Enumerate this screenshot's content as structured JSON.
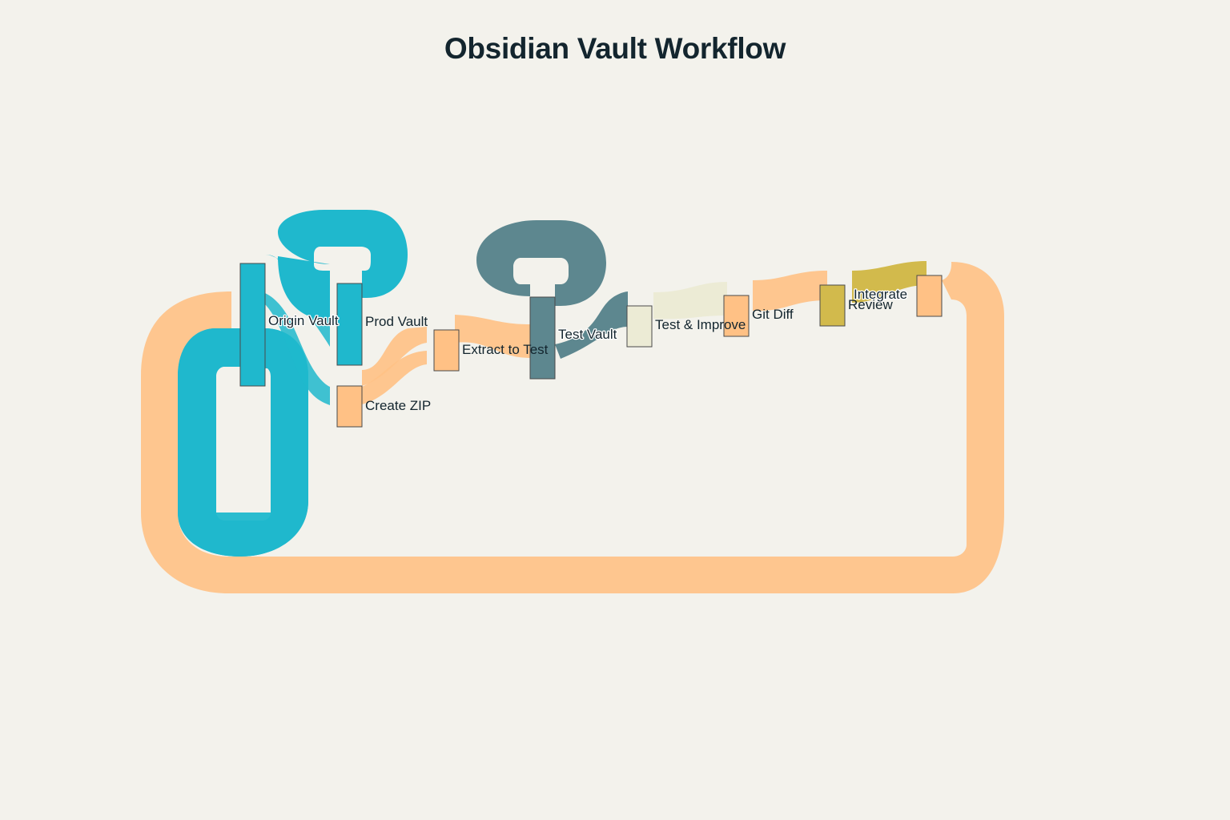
{
  "title": "Obsidian Vault Workflow",
  "colors": {
    "background": "#f3f2ec",
    "cyan": "#1fb8cd",
    "orange": "#ffc185",
    "slate": "#5d878f",
    "cream": "#ecebd5",
    "olive": "#d2ba4c"
  },
  "nodes": [
    {
      "id": "origin",
      "label": "Origin Vault",
      "color": "#1fb8cd"
    },
    {
      "id": "prod",
      "label": "Prod Vault",
      "color": "#1fb8cd"
    },
    {
      "id": "zip",
      "label": "Create ZIP",
      "color": "#ffc185"
    },
    {
      "id": "extract",
      "label": "Extract to Test",
      "color": "#ffc185"
    },
    {
      "id": "test",
      "label": "Test Vault",
      "color": "#5d878f"
    },
    {
      "id": "improve",
      "label": "Test & Improve",
      "color": "#ecebd5"
    },
    {
      "id": "diff",
      "label": "Git Diff",
      "color": "#ffc185"
    },
    {
      "id": "review",
      "label": "Review",
      "color": "#d2ba4c"
    },
    {
      "id": "integrate",
      "label": "Integrate",
      "color": "#ffc185"
    }
  ],
  "links": [
    {
      "source": "origin",
      "target": "origin",
      "color": "#1fb8cd"
    },
    {
      "source": "origin",
      "target": "prod",
      "color": "#1fb8cd"
    },
    {
      "source": "origin",
      "target": "zip",
      "color": "#1fb8cd"
    },
    {
      "source": "prod",
      "target": "prod",
      "color": "#1fb8cd"
    },
    {
      "source": "prod",
      "target": "extract",
      "color": "#ffc185"
    },
    {
      "source": "zip",
      "target": "extract",
      "color": "#ffc185"
    },
    {
      "source": "extract",
      "target": "test",
      "color": "#ffc185"
    },
    {
      "source": "test",
      "target": "test",
      "color": "#5d878f"
    },
    {
      "source": "test",
      "target": "improve",
      "color": "#5d878f"
    },
    {
      "source": "improve",
      "target": "diff",
      "color": "#ecebd5"
    },
    {
      "source": "diff",
      "target": "review",
      "color": "#ffc185"
    },
    {
      "source": "review",
      "target": "integrate",
      "color": "#d2ba4c"
    },
    {
      "source": "integrate",
      "target": "origin",
      "color": "#ffc185"
    }
  ]
}
